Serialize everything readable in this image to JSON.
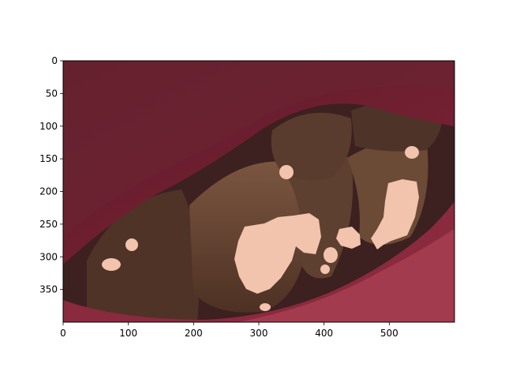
{
  "image_axes": {
    "x_ticks": [
      {
        "value": 0,
        "label": "0"
      },
      {
        "value": 100,
        "label": "100"
      },
      {
        "value": 200,
        "label": "200"
      },
      {
        "value": 300,
        "label": "300"
      },
      {
        "value": 400,
        "label": "400"
      },
      {
        "value": 500,
        "label": "500"
      }
    ],
    "y_ticks": [
      {
        "value": 0,
        "label": "0"
      },
      {
        "value": 50,
        "label": "50"
      },
      {
        "value": 100,
        "label": "100"
      },
      {
        "value": 150,
        "label": "150"
      },
      {
        "value": 200,
        "label": "200"
      },
      {
        "value": 250,
        "label": "250"
      },
      {
        "value": 300,
        "label": "300"
      },
      {
        "value": 350,
        "label": "350"
      }
    ],
    "x_range": [
      0,
      600
    ],
    "y_range": [
      0,
      400
    ],
    "y_inverted": true
  },
  "scene": {
    "description_colors": {
      "lips": "#7a1e34",
      "lips_highlight": "#b04558",
      "gum_shadow": "#4a1a1a",
      "tooth_dark": "#5a3a2c",
      "tooth_mid": "#7a5640",
      "highlight_overlay": "#f2c4ad"
    }
  }
}
